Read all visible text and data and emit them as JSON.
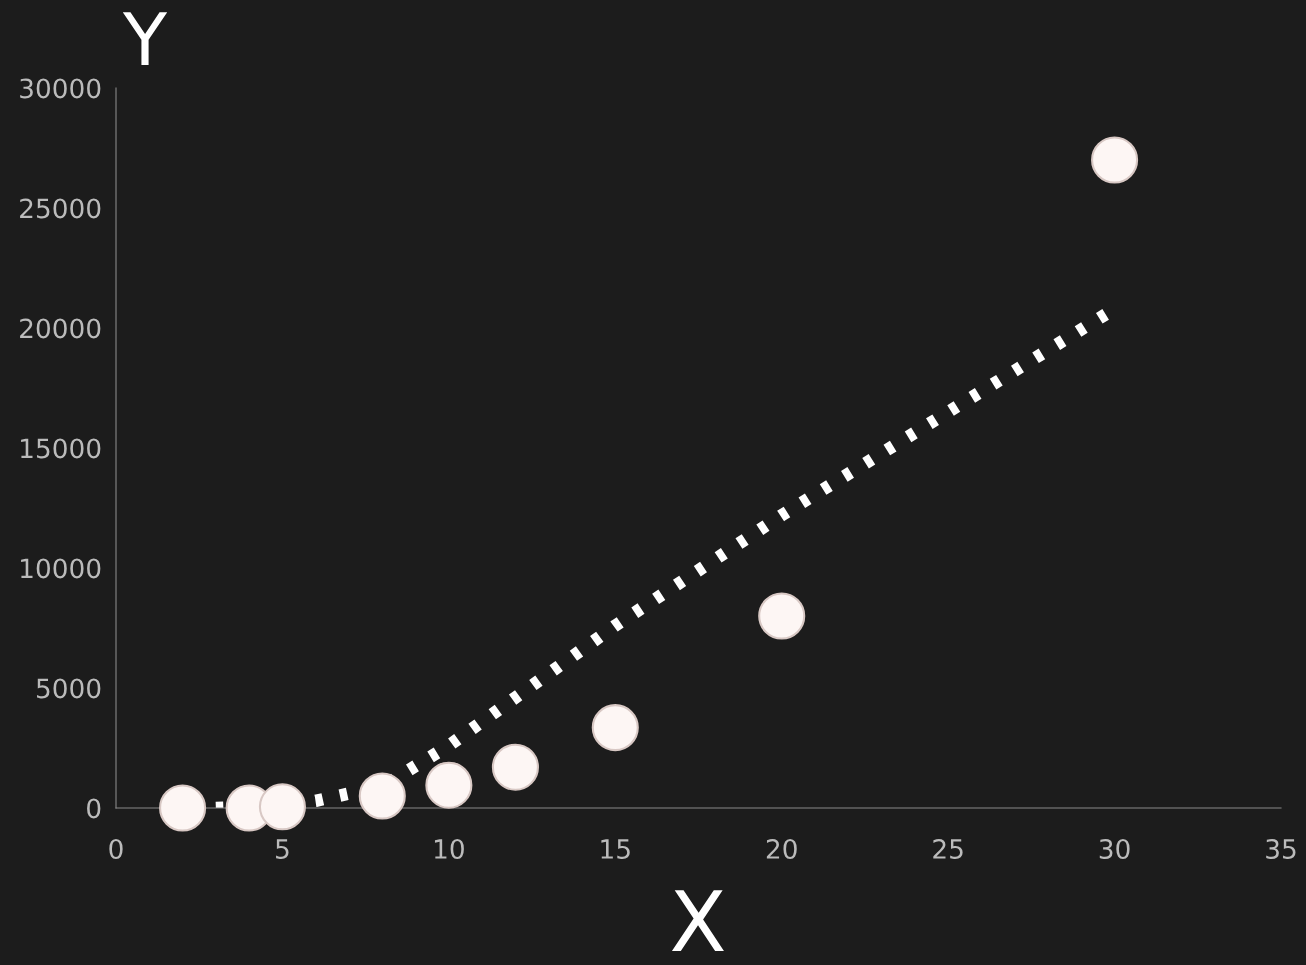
{
  "chart_data": {
    "type": "scatter",
    "xlabel": "X",
    "ylabel": "Y",
    "xlim": [
      0,
      35
    ],
    "ylim": [
      0,
      30000
    ],
    "xticks": [
      0,
      5,
      10,
      15,
      20,
      25,
      30,
      35
    ],
    "yticks": [
      0,
      5000,
      10000,
      15000,
      20000,
      25000,
      30000
    ],
    "grid": false,
    "series": [
      {
        "marker": "circle",
        "color": "#fdf6f4",
        "x": [
          2,
          4,
          5,
          8,
          10,
          12,
          15,
          20,
          30
        ],
        "values": [
          0,
          0,
          50,
          500,
          950,
          1700,
          3350,
          8000,
          27000
        ]
      },
      {
        "type": "line",
        "color": "#ffffff",
        "line_style": "dotted",
        "marker": "none",
        "x": [
          3,
          5,
          6,
          8,
          10,
          15,
          20,
          25,
          30
        ],
        "values": [
          0,
          100,
          300,
          900,
          2600,
          7600,
          12200,
          16500,
          20800
        ]
      }
    ]
  }
}
